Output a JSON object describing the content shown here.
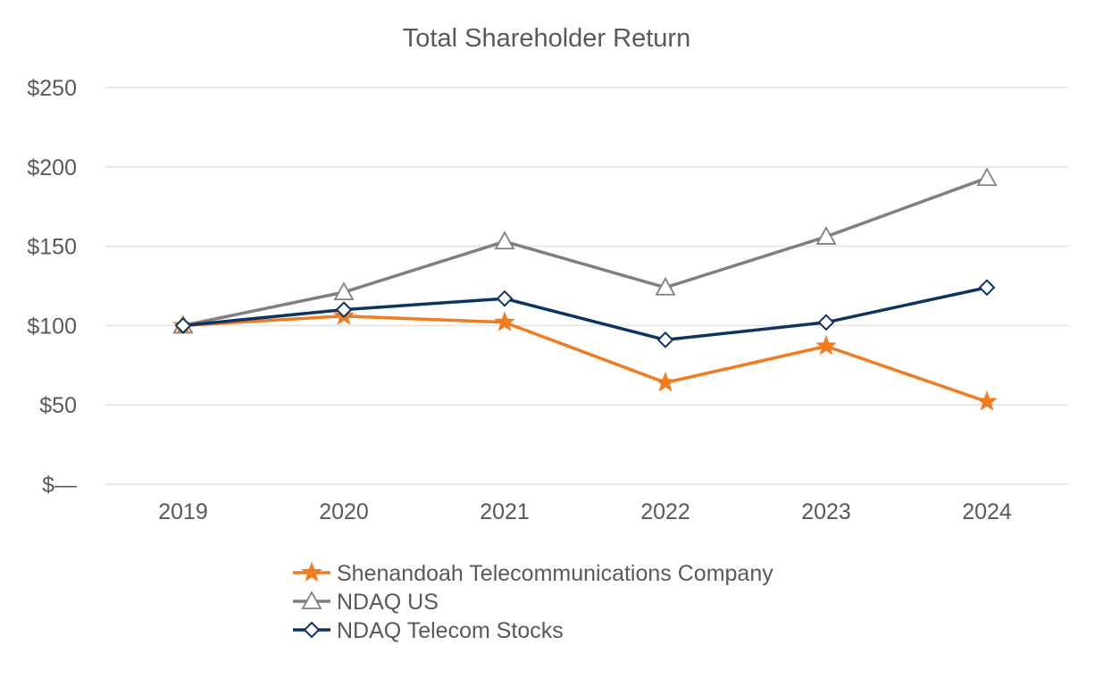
{
  "chart_data": {
    "type": "line",
    "title": "Total Shareholder Return",
    "xlabel": "",
    "ylabel": "",
    "categories": [
      "2019",
      "2020",
      "2021",
      "2022",
      "2023",
      "2024"
    ],
    "ylim": [
      0,
      250
    ],
    "yticks": [
      {
        "value": 0,
        "label": "$—"
      },
      {
        "value": 50,
        "label": "$50"
      },
      {
        "value": 100,
        "label": "$100"
      },
      {
        "value": 150,
        "label": "$150"
      },
      {
        "value": 200,
        "label": "$200"
      },
      {
        "value": 250,
        "label": "$250"
      }
    ],
    "grid": true,
    "legend_position": "bottom",
    "series": [
      {
        "name": "Shenandoah Telecommunications Company",
        "color": "#f07c22",
        "marker": "star",
        "values": [
          100,
          106,
          102,
          64,
          87,
          52
        ]
      },
      {
        "name": "NDAQ US",
        "color": "#7f7f7f",
        "marker": "triangle",
        "values": [
          100,
          121,
          153,
          124,
          156,
          193
        ]
      },
      {
        "name": "NDAQ Telecom Stocks",
        "color": "#0d3461",
        "marker": "diamond",
        "values": [
          100,
          110,
          117,
          91,
          102,
          124
        ]
      }
    ]
  }
}
